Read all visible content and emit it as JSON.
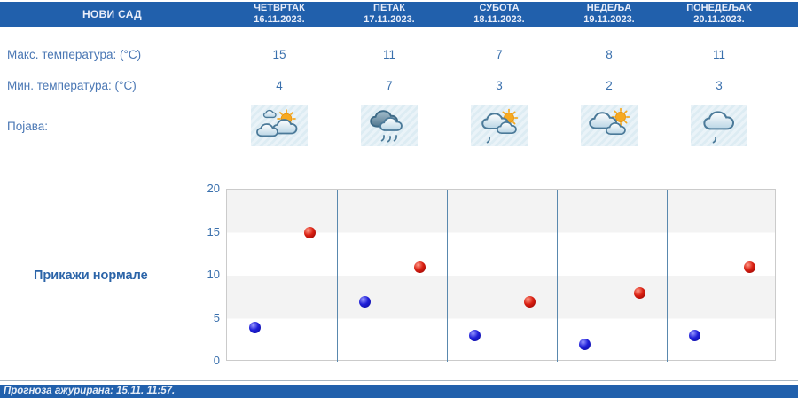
{
  "header": {
    "location": "НОВИ САД",
    "days": [
      {
        "name": "ЧЕТВРТАК",
        "date": "16.11.2023."
      },
      {
        "name": "ПЕТАК",
        "date": "17.11.2023."
      },
      {
        "name": "СУБОТА",
        "date": "18.11.2023."
      },
      {
        "name": "НЕДЕЉА",
        "date": "19.11.2023."
      },
      {
        "name": "ПОНЕДЕЉАК",
        "date": "20.11.2023."
      }
    ]
  },
  "rows": {
    "max_label": "Макс. температура: (°C)",
    "min_label": "Мин. температура: (°C)",
    "phenomena_label": "Појава:"
  },
  "forecast": {
    "max_temps": [
      15,
      11,
      7,
      8,
      11
    ],
    "min_temps": [
      4,
      7,
      3,
      2,
      3
    ],
    "icons": [
      "sun-clouds-icon",
      "rain-icon",
      "sun-clouds-drizzle-icon",
      "sun-clouds-icon",
      "cloud-drizzle-icon"
    ]
  },
  "controls": {
    "show_normals_label": "Прикажи нормале"
  },
  "chart_data": {
    "type": "scatter",
    "categories": [
      "16.11.2023.",
      "17.11.2023.",
      "18.11.2023.",
      "19.11.2023.",
      "20.11.2023."
    ],
    "series": [
      {
        "name": "Мин. температура (°C)",
        "color": "#1a1ac8",
        "values": [
          4,
          7,
          3,
          2,
          3
        ]
      },
      {
        "name": "Макс. температура (°C)",
        "color": "#cc1414",
        "values": [
          15,
          11,
          7,
          8,
          11
        ]
      }
    ],
    "ylim": [
      0,
      20
    ],
    "yticks": [
      0,
      5,
      10,
      15,
      20
    ],
    "grid": "alternating-horizontal-bands",
    "band_colors": [
      "#f3f3f3",
      "#ffffff"
    ],
    "divider_color": "#5988ae",
    "legend": "none",
    "title": ""
  },
  "footer": {
    "updated_text": "Прогноза ажурирана:  15.11. 11:57."
  }
}
